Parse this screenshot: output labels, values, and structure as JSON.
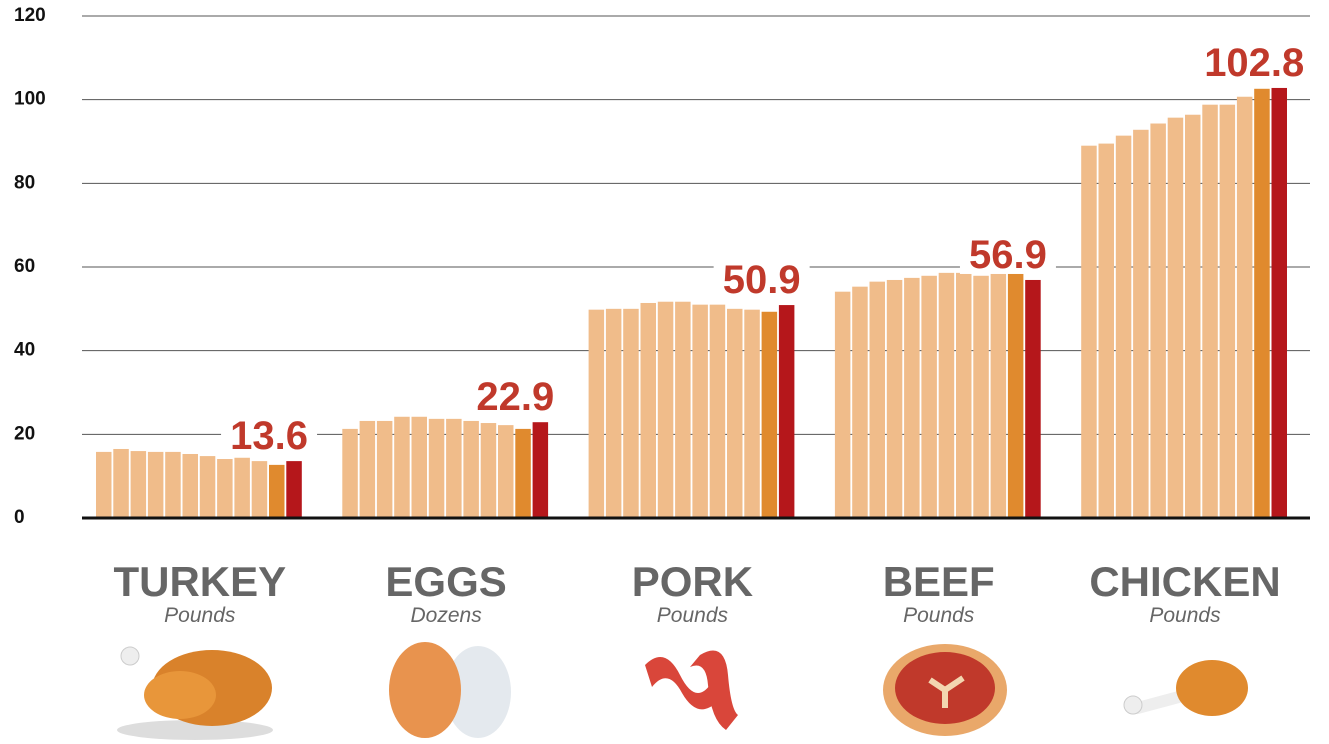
{
  "chart_data": {
    "type": "grouped_bar",
    "groups": [
      {
        "name": "TURKEY",
        "unit": "Pounds",
        "values": [
          15.8,
          16.5,
          16.0,
          15.8,
          15.8,
          15.3,
          14.8,
          14.1,
          14.4,
          13.6,
          12.7,
          13.6
        ]
      },
      {
        "name": "EGGS",
        "unit": "Dozens",
        "values": [
          21.3,
          23.2,
          23.2,
          24.2,
          24.2,
          23.7,
          23.7,
          23.2,
          22.7,
          22.2,
          21.3,
          22.9
        ]
      },
      {
        "name": "PORK",
        "unit": "Pounds",
        "values": [
          49.8,
          50.0,
          50.0,
          51.4,
          51.7,
          51.7,
          51.0,
          51.0,
          50.0,
          49.8,
          49.3,
          50.9
        ]
      },
      {
        "name": "BEEF",
        "unit": "Pounds",
        "values": [
          54.1,
          55.3,
          56.5,
          56.9,
          57.4,
          57.9,
          58.6,
          58.6,
          57.9,
          58.6,
          58.6,
          56.9
        ]
      },
      {
        "name": "CHICKEN",
        "unit": "Pounds",
        "values": [
          89.0,
          89.5,
          91.4,
          92.8,
          94.3,
          95.7,
          96.4,
          98.8,
          98.8,
          100.7,
          102.6,
          102.8
        ]
      }
    ],
    "bar_colors": [
      "#f0bc8a",
      "#f0bc8a",
      "#f0bc8a",
      "#f0bc8a",
      "#f0bc8a",
      "#f0bc8a",
      "#f0bc8a",
      "#f0bc8a",
      "#f0bc8a",
      "#f0bc8a",
      "#e08a2e",
      "#b5171b"
    ],
    "ylim": [
      0,
      120
    ],
    "yticks": [
      0,
      20,
      40,
      60,
      80,
      100,
      120
    ],
    "grid": true
  }
}
